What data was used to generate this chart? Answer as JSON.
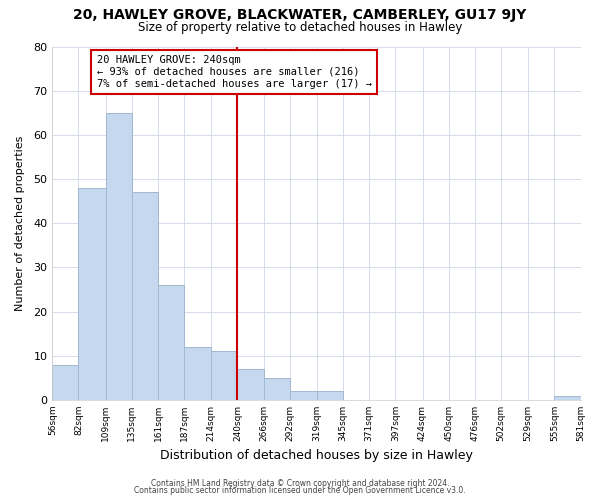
{
  "title": "20, HAWLEY GROVE, BLACKWATER, CAMBERLEY, GU17 9JY",
  "subtitle": "Size of property relative to detached houses in Hawley",
  "xlabel": "Distribution of detached houses by size in Hawley",
  "ylabel": "Number of detached properties",
  "bin_edges": [
    56,
    82,
    109,
    135,
    161,
    187,
    214,
    240,
    266,
    292,
    319,
    345,
    371,
    397,
    424,
    450,
    476,
    502,
    529,
    555,
    581
  ],
  "bin_counts": [
    8,
    48,
    65,
    47,
    26,
    12,
    11,
    7,
    5,
    2,
    2,
    0,
    0,
    0,
    0,
    0,
    0,
    0,
    0,
    1
  ],
  "bar_color": "#c5d8ed",
  "bar_edge_color": "#a0b8d0",
  "vline_x": 240,
  "vline_color": "#cc0000",
  "annotation_text": "20 HAWLEY GROVE: 240sqm\n← 93% of detached houses are smaller (216)\n7% of semi-detached houses are larger (17) →",
  "annotation_box_color": "#ffffff",
  "annotation_box_edge": "#cc0000",
  "ylim": [
    0,
    80
  ],
  "yticks": [
    0,
    10,
    20,
    30,
    40,
    50,
    60,
    70,
    80
  ],
  "footer_line1": "Contains HM Land Registry data © Crown copyright and database right 2024.",
  "footer_line2": "Contains public sector information licensed under the Open Government Licence v3.0.",
  "bg_color": "#ffffff",
  "plot_bg_color": "#ffffff",
  "grid_color": "#d0d8e8"
}
